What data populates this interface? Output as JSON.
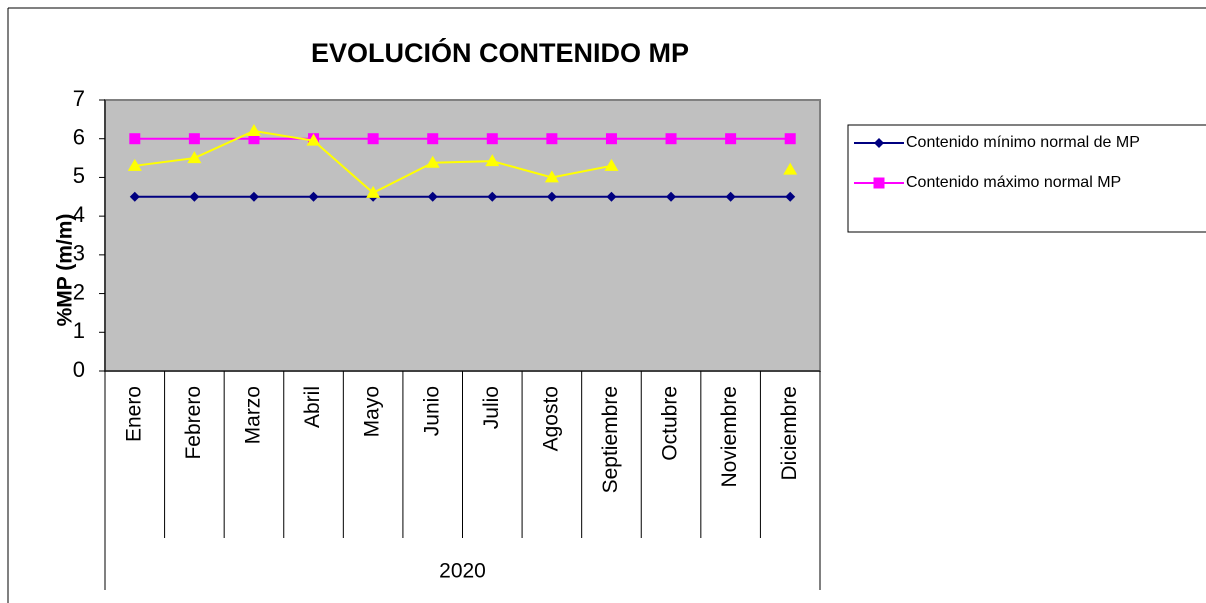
{
  "chart_data": {
    "type": "line",
    "title": "EVOLUCIÓN CONTENIDO MP",
    "y_label": "%MP (m/m)",
    "categories": [
      "Enero",
      "Febrero",
      "Marzo",
      "Abril",
      "Mayo",
      "Junio",
      "Julio",
      "Agosto",
      "Septiembre",
      "Octubre",
      "Noviembre",
      "Diciembre"
    ],
    "category_group": "2020",
    "series": [
      {
        "name": "Contenido mínimo normal de MP",
        "color": "#000080",
        "marker": "diamond",
        "values": [
          4.5,
          4.5,
          4.5,
          4.5,
          4.5,
          4.5,
          4.5,
          4.5,
          4.5,
          4.5,
          4.5,
          4.5
        ]
      },
      {
        "name": "Contenido máximo normal MP",
        "color": "#ff00ff",
        "marker": "square",
        "values": [
          6,
          6,
          6,
          6,
          6,
          6,
          6,
          6,
          6,
          6,
          6,
          6
        ]
      },
      {
        "color": "#ffff00",
        "marker": "triangle",
        "values": [
          5.3,
          5.5,
          6.2,
          5.95,
          4.6,
          5.38,
          5.42,
          5.0,
          5.3,
          null,
          null,
          5.2
        ]
      }
    ],
    "ylim": [
      0,
      7
    ],
    "yticks": [
      0,
      1,
      2,
      3,
      4,
      5,
      6,
      7
    ],
    "plot_background": "#c0c0c0",
    "legend": "right"
  }
}
